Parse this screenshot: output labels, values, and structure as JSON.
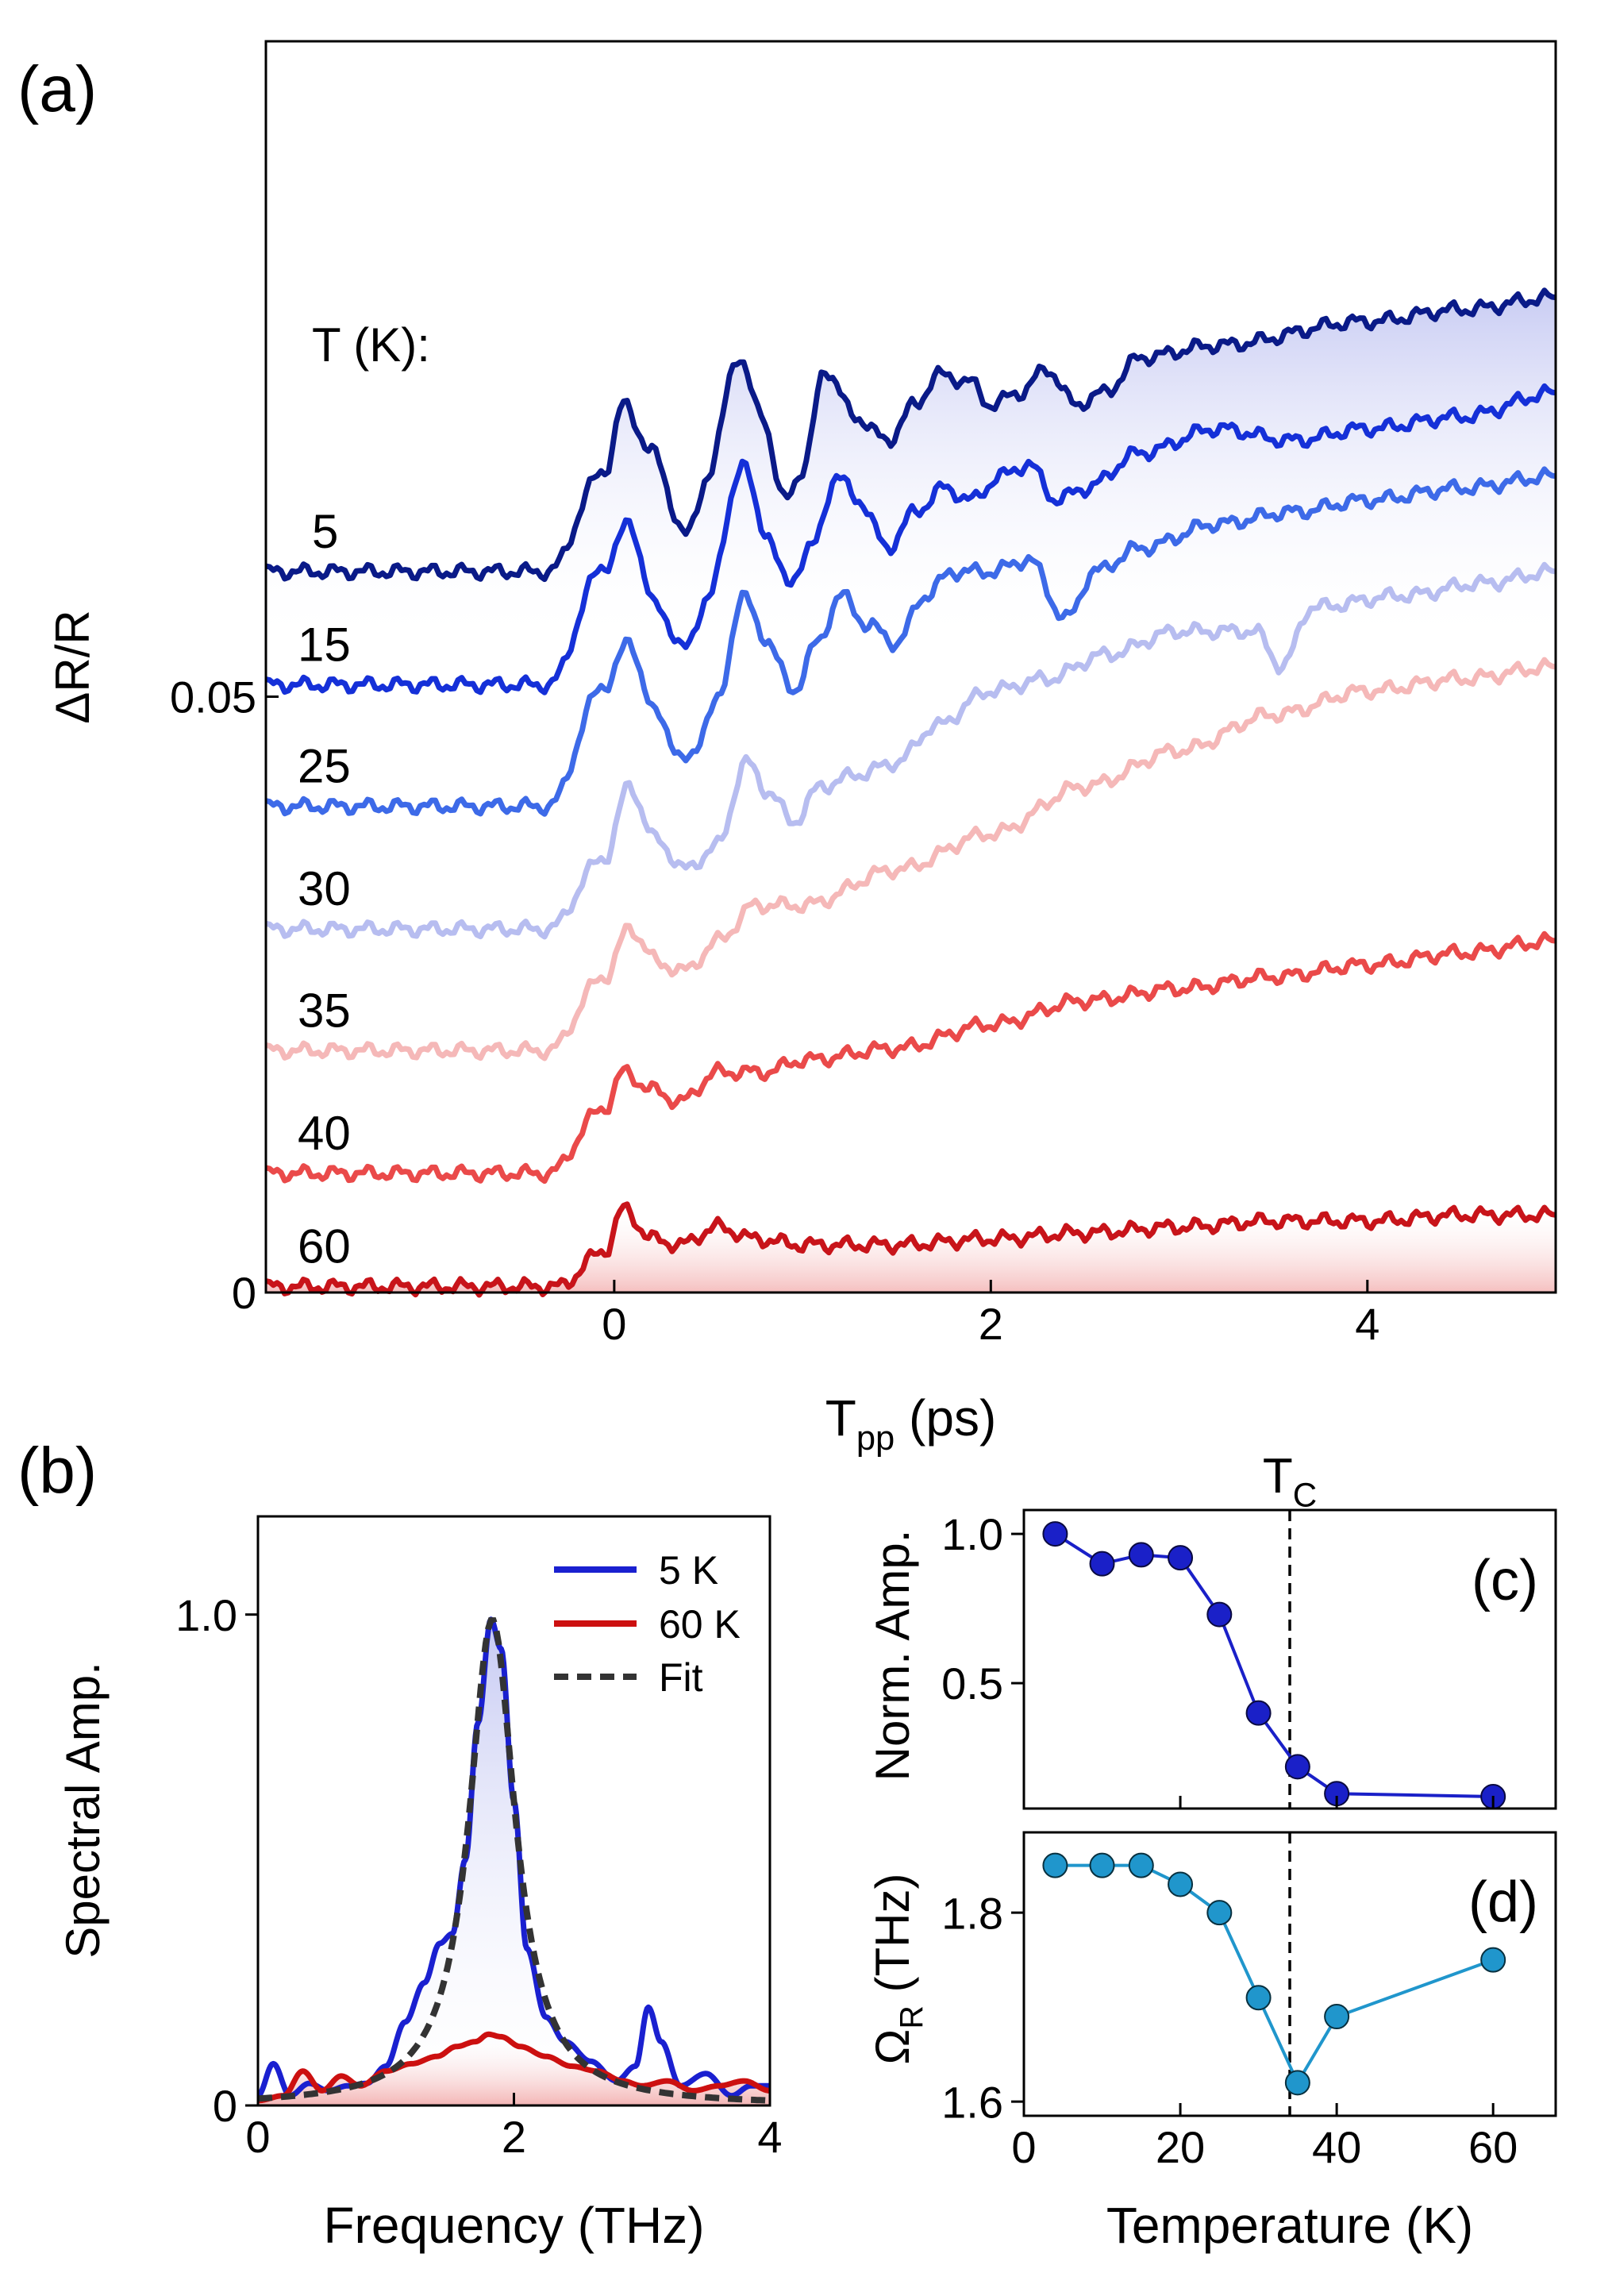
{
  "panel_labels": {
    "a": "(a)",
    "b": "(b)",
    "c": "(c)",
    "d": "(d)"
  },
  "chart_data": [
    {
      "id": "a",
      "type": "line",
      "title": "",
      "xlabel_main": "T",
      "xlabel_sub": "pp",
      "xlabel_unit": " (ps)",
      "ylabel": "ΔR/R",
      "xlim": [
        -1.85,
        5.0
      ],
      "ylim": [
        0,
        0.105
      ],
      "xticks": [
        "0",
        "2",
        "4"
      ],
      "xtick_values": [
        0,
        2,
        4
      ],
      "yticks": [
        "0",
        "0.05"
      ],
      "ytick_values": [
        0,
        0.05
      ],
      "legend_header": "T (K):",
      "series": [
        {
          "name": "5",
          "color": "#0a1a88",
          "fill": true,
          "points": [
            [
              -1.85,
              0.0605
            ],
            [
              -0.35,
              0.0605
            ],
            [
              -0.05,
              0.069
            ],
            [
              0.05,
              0.0745
            ],
            [
              0.2,
              0.0705
            ],
            [
              0.38,
              0.0635
            ],
            [
              0.5,
              0.0685
            ],
            [
              0.65,
              0.0785
            ],
            [
              0.78,
              0.074
            ],
            [
              0.9,
              0.0665
            ],
            [
              1.0,
              0.069
            ],
            [
              1.12,
              0.0775
            ],
            [
              1.28,
              0.0735
            ],
            [
              1.45,
              0.0715
            ],
            [
              1.6,
              0.0745
            ],
            [
              1.72,
              0.077
            ],
            [
              1.88,
              0.0765
            ],
            [
              2.0,
              0.0745
            ],
            [
              2.15,
              0.0755
            ],
            [
              2.3,
              0.0775
            ],
            [
              2.45,
              0.0745
            ],
            [
              2.6,
              0.0755
            ],
            [
              2.8,
              0.0785
            ],
            [
              3.2,
              0.0795
            ],
            [
              4.0,
              0.0815
            ],
            [
              4.5,
              0.0825
            ],
            [
              5.0,
              0.0835
            ]
          ]
        },
        {
          "name": "15",
          "color": "#1530d8",
          "points": [
            [
              -1.85,
              0.051
            ],
            [
              -0.35,
              0.051
            ],
            [
              -0.05,
              0.061
            ],
            [
              0.08,
              0.0645
            ],
            [
              0.22,
              0.0575
            ],
            [
              0.38,
              0.054
            ],
            [
              0.5,
              0.0585
            ],
            [
              0.68,
              0.0695
            ],
            [
              0.8,
              0.064
            ],
            [
              0.92,
              0.0595
            ],
            [
              1.05,
              0.0625
            ],
            [
              1.18,
              0.0685
            ],
            [
              1.3,
              0.0665
            ],
            [
              1.45,
              0.0625
            ],
            [
              1.6,
              0.0655
            ],
            [
              1.75,
              0.0675
            ],
            [
              1.9,
              0.0665
            ],
            [
              2.05,
              0.0685
            ],
            [
              2.2,
              0.0695
            ],
            [
              2.35,
              0.0665
            ],
            [
              2.5,
              0.0675
            ],
            [
              2.8,
              0.0705
            ],
            [
              3.2,
              0.0725
            ],
            [
              3.6,
              0.0715
            ],
            [
              4.0,
              0.0725
            ],
            [
              4.5,
              0.0735
            ],
            [
              5.0,
              0.0755
            ]
          ]
        },
        {
          "name": "25",
          "color": "#3d6ae8",
          "points": [
            [
              -1.85,
              0.0408
            ],
            [
              -0.35,
              0.0408
            ],
            [
              -0.05,
              0.051
            ],
            [
              0.08,
              0.0545
            ],
            [
              0.22,
              0.0485
            ],
            [
              0.38,
              0.0445
            ],
            [
              0.55,
              0.0495
            ],
            [
              0.68,
              0.0585
            ],
            [
              0.8,
              0.055
            ],
            [
              0.95,
              0.0505
            ],
            [
              1.08,
              0.0545
            ],
            [
              1.2,
              0.0585
            ],
            [
              1.35,
              0.056
            ],
            [
              1.5,
              0.0545
            ],
            [
              1.65,
              0.0585
            ],
            [
              1.8,
              0.0605
            ],
            [
              2.0,
              0.0605
            ],
            [
              2.2,
              0.0615
            ],
            [
              2.4,
              0.0565
            ],
            [
              2.55,
              0.0605
            ],
            [
              2.8,
              0.0625
            ],
            [
              3.2,
              0.0645
            ],
            [
              3.6,
              0.0655
            ],
            [
              4.0,
              0.0665
            ],
            [
              4.5,
              0.0675
            ],
            [
              5.0,
              0.0685
            ]
          ]
        },
        {
          "name": "30",
          "color": "#b7bdf0",
          "points": [
            [
              -1.85,
              0.0305
            ],
            [
              -0.35,
              0.0305
            ],
            [
              -0.05,
              0.0365
            ],
            [
              0.08,
              0.0425
            ],
            [
              0.22,
              0.038
            ],
            [
              0.38,
              0.0355
            ],
            [
              0.55,
              0.0375
            ],
            [
              0.7,
              0.0445
            ],
            [
              0.82,
              0.042
            ],
            [
              0.95,
              0.0395
            ],
            [
              1.1,
              0.0425
            ],
            [
              1.3,
              0.0435
            ],
            [
              1.5,
              0.0445
            ],
            [
              1.7,
              0.0475
            ],
            [
              2.0,
              0.0505
            ],
            [
              2.3,
              0.0515
            ],
            [
              2.6,
              0.0535
            ],
            [
              3.0,
              0.0555
            ],
            [
              3.4,
              0.0555
            ],
            [
              3.55,
              0.0525
            ],
            [
              3.7,
              0.0575
            ],
            [
              4.2,
              0.0585
            ],
            [
              4.6,
              0.0595
            ],
            [
              5.0,
              0.0605
            ]
          ]
        },
        {
          "name": "35",
          "color": "#f5b8b8",
          "points": [
            [
              -1.85,
              0.0203
            ],
            [
              -0.35,
              0.0203
            ],
            [
              -0.05,
              0.0265
            ],
            [
              0.08,
              0.0305
            ],
            [
              0.25,
              0.0275
            ],
            [
              0.38,
              0.027
            ],
            [
              0.55,
              0.0295
            ],
            [
              0.75,
              0.0325
            ],
            [
              1.0,
              0.0325
            ],
            [
              1.5,
              0.0355
            ],
            [
              2.0,
              0.0385
            ],
            [
              2.5,
              0.0425
            ],
            [
              3.0,
              0.0455
            ],
            [
              3.5,
              0.0485
            ],
            [
              4.0,
              0.0505
            ],
            [
              4.5,
              0.0515
            ],
            [
              5.0,
              0.0525
            ]
          ]
        },
        {
          "name": "40",
          "color": "#ea4a4a",
          "points": [
            [
              -1.85,
              0.01
            ],
            [
              -0.35,
              0.01
            ],
            [
              -0.05,
              0.0155
            ],
            [
              0.05,
              0.0185
            ],
            [
              0.2,
              0.017
            ],
            [
              0.35,
              0.016
            ],
            [
              0.55,
              0.0185
            ],
            [
              0.8,
              0.0185
            ],
            [
              1.0,
              0.0195
            ],
            [
              1.5,
              0.0205
            ],
            [
              2.0,
              0.0225
            ],
            [
              2.5,
              0.0245
            ],
            [
              3.0,
              0.0255
            ],
            [
              3.5,
              0.0265
            ],
            [
              4.0,
              0.0275
            ],
            [
              4.5,
              0.0285
            ],
            [
              5.0,
              0.0295
            ]
          ]
        },
        {
          "name": "60",
          "color": "#c8141a",
          "fill": true,
          "points": [
            [
              -1.85,
              0.0005
            ],
            [
              -0.3,
              0.0005
            ],
            [
              -0.05,
              0.0035
            ],
            [
              0.05,
              0.007
            ],
            [
              0.2,
              0.0045
            ],
            [
              0.35,
              0.004
            ],
            [
              0.55,
              0.0055
            ],
            [
              0.75,
              0.0045
            ],
            [
              1.0,
              0.004
            ],
            [
              1.5,
              0.004
            ],
            [
              2.0,
              0.0045
            ],
            [
              2.5,
              0.005
            ],
            [
              3.0,
              0.0055
            ],
            [
              3.5,
              0.006
            ],
            [
              4.0,
              0.006
            ],
            [
              4.5,
              0.0065
            ],
            [
              5.0,
              0.0065
            ]
          ]
        }
      ]
    },
    {
      "id": "b",
      "type": "line",
      "title": "",
      "xlabel": "Frequency (THz)",
      "ylabel": "Spectral Amp.",
      "xlim": [
        0,
        4
      ],
      "ylim": [
        0,
        1.2
      ],
      "xticks": [
        "0",
        "2",
        "4"
      ],
      "xtick_values": [
        0,
        2,
        4
      ],
      "yticks": [
        "0",
        "1.0"
      ],
      "ytick_values": [
        0,
        1.0
      ],
      "legend_position": "top-right",
      "series": [
        {
          "name": " 5 K",
          "color": "#1a20d0",
          "fill": true,
          "points": [
            [
              0,
              0.02
            ],
            [
              0.12,
              0.085
            ],
            [
              0.25,
              0.02
            ],
            [
              0.4,
              0.045
            ],
            [
              0.55,
              0.03
            ],
            [
              0.7,
              0.04
            ],
            [
              0.85,
              0.045
            ],
            [
              1.0,
              0.08
            ],
            [
              1.15,
              0.17
            ],
            [
              1.3,
              0.25
            ],
            [
              1.42,
              0.33
            ],
            [
              1.52,
              0.35
            ],
            [
              1.62,
              0.5
            ],
            [
              1.72,
              0.78
            ],
            [
              1.82,
              0.99
            ],
            [
              1.9,
              0.93
            ],
            [
              2.0,
              0.62
            ],
            [
              2.1,
              0.32
            ],
            [
              2.25,
              0.18
            ],
            [
              2.4,
              0.13
            ],
            [
              2.6,
              0.09
            ],
            [
              2.8,
              0.05
            ],
            [
              2.95,
              0.08
            ],
            [
              3.05,
              0.2
            ],
            [
              3.15,
              0.13
            ],
            [
              3.3,
              0.04
            ],
            [
              3.5,
              0.065
            ],
            [
              3.7,
              0.02
            ],
            [
              3.85,
              0.04
            ],
            [
              4.0,
              0.04
            ]
          ]
        },
        {
          "name": "60 K",
          "color": "#cc1010",
          "fill": true,
          "points": [
            [
              0,
              0.01
            ],
            [
              0.2,
              0.02
            ],
            [
              0.35,
              0.07
            ],
            [
              0.5,
              0.03
            ],
            [
              0.65,
              0.06
            ],
            [
              0.8,
              0.04
            ],
            [
              1.0,
              0.07
            ],
            [
              1.2,
              0.085
            ],
            [
              1.4,
              0.1
            ],
            [
              1.55,
              0.12
            ],
            [
              1.7,
              0.13
            ],
            [
              1.8,
              0.145
            ],
            [
              1.9,
              0.14
            ],
            [
              2.05,
              0.12
            ],
            [
              2.25,
              0.1
            ],
            [
              2.45,
              0.08
            ],
            [
              2.65,
              0.07
            ],
            [
              2.85,
              0.05
            ],
            [
              3.0,
              0.04
            ],
            [
              3.2,
              0.05
            ],
            [
              3.4,
              0.03
            ],
            [
              3.6,
              0.04
            ],
            [
              3.8,
              0.05
            ],
            [
              4.0,
              0.03
            ]
          ]
        },
        {
          "name": "Fit",
          "color": "#333333",
          "dashed": true,
          "lorentz": {
            "x0": 1.83,
            "gamma": 0.22,
            "amp": 0.99
          }
        }
      ]
    },
    {
      "id": "c",
      "type": "line",
      "title": "",
      "xlabel": "",
      "ylabel": "Norm. Amp.",
      "xlim": [
        0,
        68
      ],
      "ylim": [
        0.08,
        1.08
      ],
      "xticks": [],
      "xtick_values": [
        0,
        20,
        40,
        60
      ],
      "yticks": [
        "0.5",
        "1.0"
      ],
      "ytick_values": [
        0.5,
        1.0
      ],
      "color": "#1a20c8",
      "x": [
        4,
        10,
        15,
        20,
        25,
        30,
        35,
        40,
        60
      ],
      "y": [
        1.0,
        0.9,
        0.93,
        0.92,
        0.73,
        0.4,
        0.22,
        0.13,
        0.12
      ],
      "vline": 34
    },
    {
      "id": "d",
      "type": "line",
      "title": "",
      "xlabel": "Temperature (K)",
      "ylabel_main": "Ω",
      "ylabel_sub": "R",
      "ylabel_unit": " (THz)",
      "xlim": [
        0,
        68
      ],
      "ylim": [
        1.585,
        1.885
      ],
      "xticks": [
        "0",
        "20",
        "40",
        "60"
      ],
      "xtick_values": [
        0,
        20,
        40,
        60
      ],
      "yticks": [
        "1.6",
        "1.8"
      ],
      "ytick_values": [
        1.6,
        1.8
      ],
      "color": "#2096cc",
      "x": [
        4,
        10,
        15,
        20,
        25,
        30,
        35,
        40,
        60
      ],
      "y": [
        1.85,
        1.85,
        1.85,
        1.83,
        1.8,
        1.71,
        1.62,
        1.69,
        1.75
      ],
      "vline": 34,
      "vline_label_main": "T",
      "vline_label_sub": "C"
    }
  ]
}
